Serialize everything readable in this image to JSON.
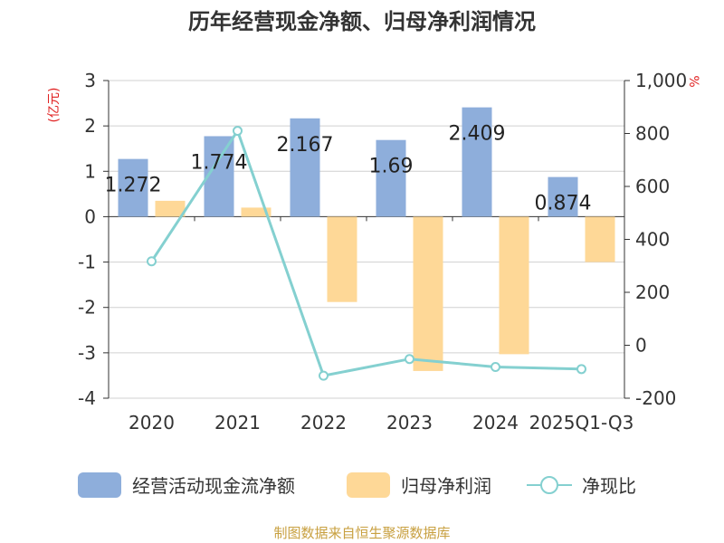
{
  "chart_data": {
    "type": "bar+line",
    "title": "历年经营现金净额、归母净利润情况",
    "categories": [
      "2020",
      "2021",
      "2022",
      "2023",
      "2024",
      "2025Q1-Q3"
    ],
    "series": [
      {
        "name": "经营活动现金流净额",
        "type": "bar",
        "axis": "left",
        "values": [
          1.272,
          1.774,
          2.167,
          1.69,
          2.409,
          0.874
        ],
        "labels": [
          "1.272",
          "1.774",
          "2.167",
          "1.69",
          "2.409",
          "0.874"
        ],
        "color": "#8eaedb"
      },
      {
        "name": "归母净利润",
        "type": "bar",
        "axis": "left",
        "values": [
          0.35,
          0.2,
          -1.88,
          -3.4,
          -3.03,
          -1.0
        ],
        "color": "#fed897"
      },
      {
        "name": "净现比",
        "type": "line",
        "axis": "right",
        "values": [
          317,
          810,
          -115,
          -52,
          -82,
          -90
        ],
        "color": "#84d0d0"
      }
    ],
    "left_axis": {
      "unit": "(亿元)",
      "ylim": [
        -4,
        3
      ],
      "ticks": [
        "3",
        "2",
        "1",
        "0",
        "-1",
        "-2",
        "-3",
        "-4"
      ]
    },
    "right_axis": {
      "unit": "%",
      "ylim": [
        -200,
        1000
      ],
      "ticks": [
        "1,000",
        "800",
        "600",
        "400",
        "200",
        "0",
        "-200"
      ]
    },
    "grid": true,
    "legend": "bottom",
    "source": "制图数据来自恒生聚源数据库"
  }
}
